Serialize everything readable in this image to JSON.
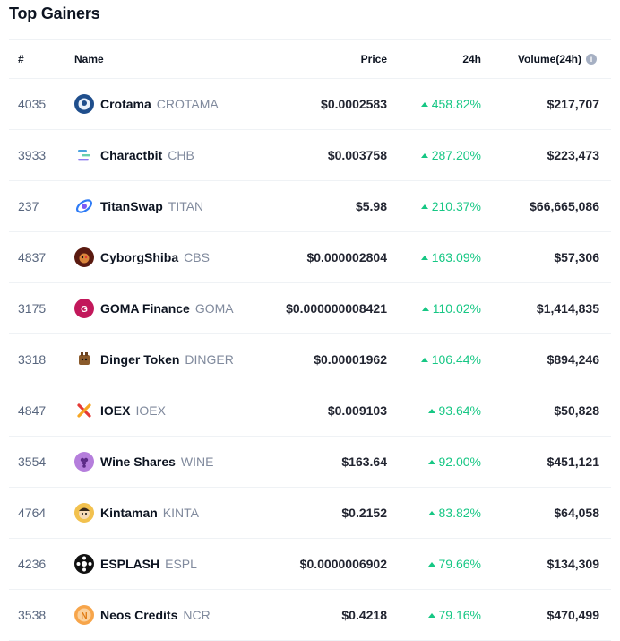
{
  "title": "Top Gainers",
  "headers": {
    "rank": "#",
    "name": "Name",
    "price": "Price",
    "change": "24h",
    "volume": "Volume(24h)",
    "info_glyph": "i"
  },
  "rows": [
    {
      "rank": "4035",
      "name": "Crotama",
      "symbol": "CROTAMA",
      "price": "$0.0002583",
      "change": "458.82%",
      "volume": "$217,707",
      "icon": "crotama-icon",
      "icon_color": "#1f4e8c"
    },
    {
      "rank": "3933",
      "name": "Charactbit",
      "symbol": "CHB",
      "price": "$0.003758",
      "change": "287.20%",
      "volume": "$223,473",
      "icon": "charactbit-icon",
      "icon_color": "#ffffff"
    },
    {
      "rank": "237",
      "name": "TitanSwap",
      "symbol": "TITAN",
      "price": "$5.98",
      "change": "210.37%",
      "volume": "$66,665,086",
      "icon": "titanswap-icon",
      "icon_color": "#ffffff"
    },
    {
      "rank": "4837",
      "name": "CyborgShiba",
      "symbol": "CBS",
      "price": "$0.000002804",
      "change": "163.09%",
      "volume": "$57,306",
      "icon": "cyborgshiba-icon",
      "icon_color": "#5a1a10"
    },
    {
      "rank": "3175",
      "name": "GOMA Finance",
      "symbol": "GOMA",
      "price": "$0.000000008421",
      "change": "110.02%",
      "volume": "$1,414,835",
      "icon": "goma-icon",
      "icon_color": "#c2185b"
    },
    {
      "rank": "3318",
      "name": "Dinger Token",
      "symbol": "DINGER",
      "price": "$0.00001962",
      "change": "106.44%",
      "volume": "$894,246",
      "icon": "dinger-icon",
      "icon_color": "#ffffff"
    },
    {
      "rank": "4847",
      "name": "IOEX",
      "symbol": "IOEX",
      "price": "$0.009103",
      "change": "93.64%",
      "volume": "$50,828",
      "icon": "ioex-icon",
      "icon_color": "#ffffff"
    },
    {
      "rank": "3554",
      "name": "Wine Shares",
      "symbol": "WINE",
      "price": "$163.64",
      "change": "92.00%",
      "volume": "$451,121",
      "icon": "wine-icon",
      "icon_color": "#b57edc"
    },
    {
      "rank": "4764",
      "name": "Kintaman",
      "symbol": "KINTA",
      "price": "$0.2152",
      "change": "83.82%",
      "volume": "$64,058",
      "icon": "kintaman-icon",
      "icon_color": "#f2c14e"
    },
    {
      "rank": "4236",
      "name": "ESPLASH",
      "symbol": "ESPL",
      "price": "$0.0000006902",
      "change": "79.66%",
      "volume": "$134,309",
      "icon": "esplash-icon",
      "icon_color": "#111111"
    },
    {
      "rank": "3538",
      "name": "Neos Credits",
      "symbol": "NCR",
      "price": "$0.4218",
      "change": "79.16%",
      "volume": "$470,499",
      "icon": "neos-credits-icon",
      "icon_color": "#f7a54a"
    }
  ],
  "colors": {
    "positive": "#16c784",
    "rank_text": "#58667e",
    "symbol_text": "#808a9d",
    "border": "#eff2f5"
  }
}
